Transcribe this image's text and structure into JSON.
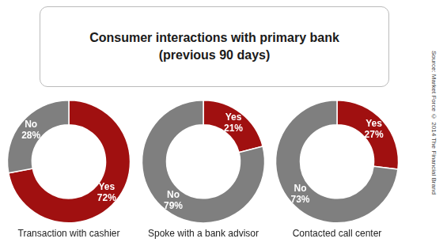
{
  "title": "Consumer interactions with primary bank",
  "subtitle": "(previous 90 days)",
  "annotations": [
    "Source: Market Force © 2014 The Financial Brand"
  ],
  "chart_data": [
    {
      "type": "doughnut",
      "title": "Transaction with cashier",
      "values": [
        72,
        28
      ],
      "value_labels": [
        "Yes\n72%",
        "No\n28%"
      ],
      "colors": [
        "#a01010",
        "#7f7f7f"
      ],
      "data_labels": true
    },
    {
      "type": "doughnut",
      "title": "Spoke with a bank advisor",
      "values": [
        21,
        79
      ],
      "value_labels": [
        "Yes\n21%",
        "No\n79%"
      ],
      "colors": [
        "#a01010",
        "#7f7f7f"
      ],
      "data_labels": true
    },
    {
      "type": "doughnut",
      "title": "Contacted call center",
      "values": [
        27,
        73
      ],
      "value_labels": [
        "Yes\n27%",
        "No\n73%"
      ],
      "colors": [
        "#a01010",
        "#7f7f7f"
      ],
      "data_labels": true
    }
  ]
}
